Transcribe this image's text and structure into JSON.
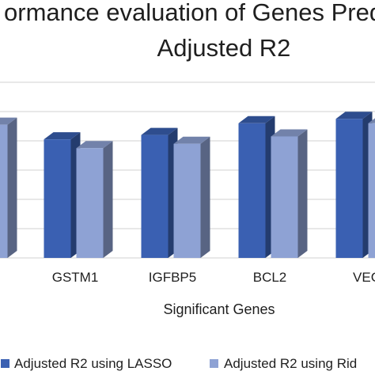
{
  "chart_data": {
    "type": "bar",
    "title": "ormance evaluation of Genes Predi",
    "subtitle": "Adjusted R2",
    "xlabel": "Significant Genes",
    "ylabel": "",
    "categories": [
      "",
      "GSTM1",
      "IGFBP5",
      "BCL2",
      "VEG"
    ],
    "series": [
      {
        "name": "Adjusted R2 using LASSO",
        "values": [
          0.94,
          0.81,
          0.84,
          0.92,
          0.95
        ],
        "color": "#3a60b2"
      },
      {
        "name": "Adjusted R2 using Rid",
        "values": [
          0.91,
          0.75,
          0.78,
          0.83,
          0.92
        ],
        "color": "#8ea2d4"
      }
    ],
    "ylim": [
      0,
      1.2
    ],
    "grid": true,
    "bar_style": "3d",
    "legend_position": "bottom"
  }
}
